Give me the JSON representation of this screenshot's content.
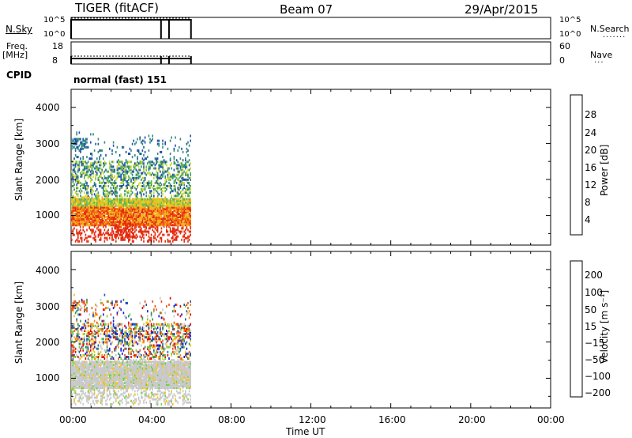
{
  "header": {
    "radar": "TIGER (fitACF)",
    "beam": "Beam 07",
    "date": "29/Apr/2015"
  },
  "top_panels": {
    "nsky_label": "N.Sky",
    "nsky_ticks": [
      "10^5",
      "10^0"
    ],
    "nsearch_label": "N.Search",
    "freq_label_line1": "Freq.",
    "freq_label_line2": "[MHz]",
    "freq_ticks": [
      "18",
      "8"
    ],
    "nave_label": "Nave",
    "nave_ticks": [
      "60",
      "0"
    ],
    "cpid_label": "CPID",
    "cpid_value": "normal (fast) 151"
  },
  "chart_data": [
    {
      "type": "heatmap",
      "name": "power",
      "ylabel": "Slant Range [km]",
      "ylim": [
        180,
        4500
      ],
      "xlim": [
        0,
        24
      ],
      "yticks": [
        "4000",
        "3000",
        "2000",
        "1000"
      ],
      "colorbar": {
        "label": "Power [dB]",
        "range": [
          0,
          32
        ],
        "ticks": [
          "28",
          "24",
          "20",
          "16",
          "12",
          "8",
          "4"
        ],
        "colors": [
          "#0000ff",
          "#1f4fa8",
          "#2e8a7a",
          "#5fb24a",
          "#c6d82a",
          "#f3b21a",
          "#f26d10",
          "#e52a0c"
        ]
      },
      "data_extent_ut": [
        0,
        6
      ]
    },
    {
      "type": "heatmap",
      "name": "velocity",
      "ylabel": "Slant Range [km]",
      "ylim": [
        180,
        4500
      ],
      "xlim": [
        0,
        24
      ],
      "yticks": [
        "4000",
        "3000",
        "2000",
        "1000"
      ],
      "colorbar": {
        "label": "Velocity [m s⁻¹]",
        "ticks": [
          "200",
          "100",
          "50",
          "15",
          "−15",
          "−50",
          "−100",
          "−200"
        ],
        "colors": [
          "#1a1ad6",
          "#1f5aa8",
          "#2d8c6e",
          "#6ad03a",
          "#c8c8c8",
          "#f4c20d",
          "#f08a12",
          "#e8541a",
          "#e00000"
        ]
      },
      "data_extent_ut": [
        0,
        6
      ]
    }
  ],
  "x_axis": {
    "ticks": [
      "00:00",
      "04:00",
      "08:00",
      "12:00",
      "16:00",
      "20:00",
      "00:00"
    ],
    "label": "Time UT"
  }
}
